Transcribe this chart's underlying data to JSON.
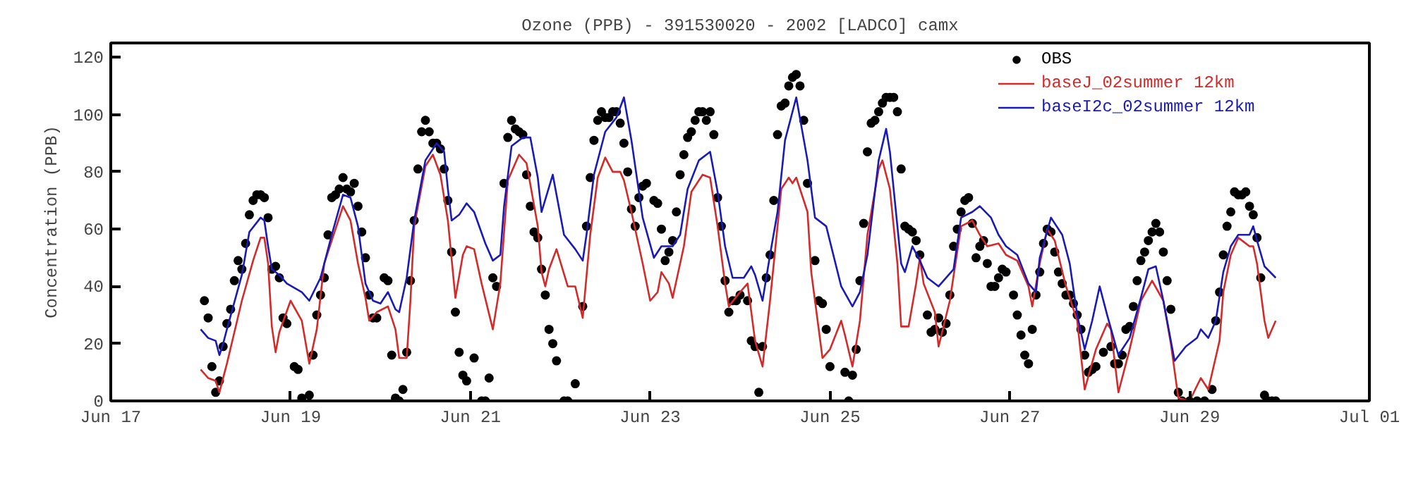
{
  "chart_data": {
    "type": "line",
    "title": "Ozone (PPB) - 391530020 - 2002 [LADCO] camx",
    "ylabel": "Concentration (PPB)",
    "xlim": [
      "2002-06-17",
      "2002-07-01"
    ],
    "xticks": [
      {
        "value": "2002-06-17",
        "label": "Jun 17"
      },
      {
        "value": "2002-06-19",
        "label": "Jun 19"
      },
      {
        "value": "2002-06-21",
        "label": "Jun 21"
      },
      {
        "value": "2002-06-23",
        "label": "Jun 23"
      },
      {
        "value": "2002-06-25",
        "label": "Jun 25"
      },
      {
        "value": "2002-06-27",
        "label": "Jun 27"
      },
      {
        "value": "2002-06-29",
        "label": "Jun 29"
      },
      {
        "value": "2002-07-01",
        "label": "Jul 01"
      }
    ],
    "ylim": [
      0,
      125
    ],
    "yticks": [
      0,
      20,
      40,
      60,
      80,
      100,
      120
    ],
    "grid": false,
    "legend": "top right",
    "line_style": "solid",
    "series": [
      {
        "name": "OBS",
        "type": "scatter",
        "marker": "circle",
        "color": "#000000",
        "x": [
          "2002-06-18T01:00",
          "2002-06-18T02:00",
          "2002-06-18T03:00",
          "2002-06-18T04:00",
          "2002-06-18T05:00",
          "2002-06-18T06:00",
          "2002-06-18T07:00",
          "2002-06-18T08:00",
          "2002-06-18T09:00",
          "2002-06-18T10:00",
          "2002-06-18T11:00",
          "2002-06-18T12:00",
          "2002-06-18T13:00",
          "2002-06-18T14:00",
          "2002-06-18T15:00",
          "2002-06-18T16:00",
          "2002-06-18T17:00",
          "2002-06-18T18:00",
          "2002-06-18T19:00",
          "2002-06-18T20:00",
          "2002-06-18T21:00",
          "2002-06-18T22:00",
          "2002-06-18T23:00",
          "2002-06-19T01:00",
          "2002-06-19T02:00",
          "2002-06-19T03:00",
          "2002-06-19T05:00",
          "2002-06-19T06:00",
          "2002-06-19T07:00",
          "2002-06-19T08:00",
          "2002-06-19T09:00",
          "2002-06-19T10:00",
          "2002-06-19T11:00",
          "2002-06-19T12:00",
          "2002-06-19T13:00",
          "2002-06-19T14:00",
          "2002-06-19T15:00",
          "2002-06-19T16:00",
          "2002-06-19T17:00",
          "2002-06-19T18:00",
          "2002-06-19T19:00",
          "2002-06-19T20:00",
          "2002-06-19T21:00",
          "2002-06-19T22:00",
          "2002-06-19T23:00",
          "2002-06-20T01:00",
          "2002-06-20T02:00",
          "2002-06-20T03:00",
          "2002-06-20T04:00",
          "2002-06-20T05:00",
          "2002-06-20T06:00",
          "2002-06-20T07:00",
          "2002-06-20T08:00",
          "2002-06-20T09:00",
          "2002-06-20T10:00",
          "2002-06-20T11:00",
          "2002-06-20T12:00",
          "2002-06-20T13:00",
          "2002-06-20T14:00",
          "2002-06-20T15:00",
          "2002-06-20T16:00",
          "2002-06-20T17:00",
          "2002-06-20T18:00",
          "2002-06-20T19:00",
          "2002-06-20T20:00",
          "2002-06-20T21:00",
          "2002-06-20T22:00",
          "2002-06-20T23:00",
          "2002-06-21T01:00",
          "2002-06-21T03:00",
          "2002-06-21T04:00",
          "2002-06-21T05:00",
          "2002-06-21T06:00",
          "2002-06-21T07:00",
          "2002-06-21T09:00",
          "2002-06-21T10:00",
          "2002-06-21T11:00",
          "2002-06-21T12:00",
          "2002-06-21T13:00",
          "2002-06-21T14:00",
          "2002-06-21T15:00",
          "2002-06-21T16:00",
          "2002-06-21T17:00",
          "2002-06-21T18:00",
          "2002-06-21T19:00",
          "2002-06-21T20:00",
          "2002-06-21T21:00",
          "2002-06-21T22:00",
          "2002-06-21T23:00",
          "2002-06-22T01:00",
          "2002-06-22T02:00",
          "2002-06-22T04:00",
          "2002-06-22T06:00",
          "2002-06-22T07:00",
          "2002-06-22T08:00",
          "2002-06-22T09:00",
          "2002-06-22T10:00",
          "2002-06-22T11:00",
          "2002-06-22T12:00",
          "2002-06-22T13:00",
          "2002-06-22T14:00",
          "2002-06-22T15:00",
          "2002-06-22T16:00",
          "2002-06-22T17:00",
          "2002-06-22T18:00",
          "2002-06-22T19:00",
          "2002-06-22T20:00",
          "2002-06-22T21:00",
          "2002-06-22T22:00",
          "2002-06-22T23:00",
          "2002-06-23T01:00",
          "2002-06-23T02:00",
          "2002-06-23T03:00",
          "2002-06-23T04:00",
          "2002-06-23T05:00",
          "2002-06-23T06:00",
          "2002-06-23T07:00",
          "2002-06-23T08:00",
          "2002-06-23T09:00",
          "2002-06-23T10:00",
          "2002-06-23T11:00",
          "2002-06-23T12:00",
          "2002-06-23T13:00",
          "2002-06-23T14:00",
          "2002-06-23T15:00",
          "2002-06-23T16:00",
          "2002-06-23T17:00",
          "2002-06-23T18:00",
          "2002-06-23T19:00",
          "2002-06-23T20:00",
          "2002-06-23T21:00",
          "2002-06-23T22:00",
          "2002-06-23T23:00",
          "2002-06-24T00:00",
          "2002-06-24T02:00",
          "2002-06-24T03:00",
          "2002-06-24T04:00",
          "2002-06-24T05:00",
          "2002-06-24T06:00",
          "2002-06-24T07:00",
          "2002-06-24T08:00",
          "2002-06-24T09:00",
          "2002-06-24T10:00",
          "2002-06-24T11:00",
          "2002-06-24T12:00",
          "2002-06-24T13:00",
          "2002-06-24T14:00",
          "2002-06-24T15:00",
          "2002-06-24T16:00",
          "2002-06-24T17:00",
          "2002-06-24T18:00",
          "2002-06-24T20:00",
          "2002-06-24T21:00",
          "2002-06-24T22:00",
          "2002-06-24T23:00",
          "2002-06-25T00:00",
          "2002-06-25T04:00",
          "2002-06-25T05:00",
          "2002-06-25T06:00",
          "2002-06-25T07:00",
          "2002-06-25T08:00",
          "2002-06-25T09:00",
          "2002-06-25T10:00",
          "2002-06-25T11:00",
          "2002-06-25T12:00",
          "2002-06-25T13:00",
          "2002-06-25T14:00",
          "2002-06-25T15:00",
          "2002-06-25T16:00",
          "2002-06-25T17:00",
          "2002-06-25T18:00",
          "2002-06-25T19:00",
          "2002-06-25T20:00",
          "2002-06-25T21:00",
          "2002-06-25T22:00",
          "2002-06-25T23:00",
          "2002-06-26T00:00",
          "2002-06-26T02:00",
          "2002-06-26T03:00",
          "2002-06-26T04:00",
          "2002-06-26T05:00",
          "2002-06-26T06:00",
          "2002-06-26T07:00",
          "2002-06-26T08:00",
          "2002-06-26T09:00",
          "2002-06-26T10:00",
          "2002-06-26T11:00",
          "2002-06-26T12:00",
          "2002-06-26T13:00",
          "2002-06-26T14:00",
          "2002-06-26T15:00",
          "2002-06-26T16:00",
          "2002-06-26T17:00",
          "2002-06-26T18:00",
          "2002-06-26T19:00",
          "2002-06-26T20:00",
          "2002-06-26T21:00",
          "2002-06-26T22:00",
          "2002-06-26T23:00",
          "2002-06-27T01:00",
          "2002-06-27T02:00",
          "2002-06-27T03:00",
          "2002-06-27T04:00",
          "2002-06-27T05:00",
          "2002-06-27T06:00",
          "2002-06-27T07:00",
          "2002-06-27T08:00",
          "2002-06-27T09:00",
          "2002-06-27T10:00",
          "2002-06-27T11:00",
          "2002-06-27T12:00",
          "2002-06-27T13:00",
          "2002-06-27T14:00",
          "2002-06-27T15:00",
          "2002-06-27T16:00",
          "2002-06-27T17:00",
          "2002-06-27T18:00",
          "2002-06-27T19:00",
          "2002-06-27T20:00",
          "2002-06-27T21:00",
          "2002-06-27T22:00",
          "2002-06-27T23:00",
          "2002-06-28T01:00",
          "2002-06-28T03:00",
          "2002-06-28T04:00",
          "2002-06-28T05:00",
          "2002-06-28T06:00",
          "2002-06-28T07:00",
          "2002-06-28T08:00",
          "2002-06-28T09:00",
          "2002-06-28T10:00",
          "2002-06-28T11:00",
          "2002-06-28T12:00",
          "2002-06-28T13:00",
          "2002-06-28T14:00",
          "2002-06-28T15:00",
          "2002-06-28T16:00",
          "2002-06-28T17:00",
          "2002-06-28T18:00",
          "2002-06-28T19:00",
          "2002-06-28T21:00",
          "2002-06-28T22:00",
          "2002-06-29T00:00",
          "2002-06-29T02:00",
          "2002-06-29T04:00",
          "2002-06-29T06:00",
          "2002-06-29T07:00",
          "2002-06-29T08:00",
          "2002-06-29T09:00",
          "2002-06-29T10:00",
          "2002-06-29T11:00",
          "2002-06-29T12:00",
          "2002-06-29T13:00",
          "2002-06-29T14:00",
          "2002-06-29T15:00",
          "2002-06-29T16:00",
          "2002-06-29T17:00",
          "2002-06-29T18:00",
          "2002-06-29T19:00",
          "2002-06-29T20:00",
          "2002-06-29T21:00",
          "2002-06-29T22:00",
          "2002-06-29T23:00"
        ],
        "values": [
          35,
          29,
          12,
          3,
          7,
          19,
          27,
          32,
          42,
          49,
          46,
          55,
          65,
          70,
          72,
          72,
          71,
          64,
          46,
          47,
          43,
          29,
          27,
          12,
          11,
          1,
          2,
          16,
          30,
          37,
          43,
          58,
          71,
          72,
          74,
          78,
          74,
          73,
          76,
          68,
          59,
          50,
          37,
          29,
          29,
          43,
          42,
          16,
          1,
          0,
          4,
          17,
          42,
          63,
          81,
          94,
          98,
          94,
          90,
          90,
          88,
          81,
          70,
          52,
          31,
          17,
          9,
          7,
          15,
          0,
          0,
          8,
          43,
          40,
          76,
          92,
          98,
          95,
          94,
          93,
          79,
          68,
          59,
          57,
          46,
          37,
          25,
          20,
          14,
          0,
          0,
          6,
          33,
          61,
          78,
          91,
          98,
          101,
          99,
          99,
          101,
          101,
          97,
          90,
          80,
          67,
          61,
          71,
          75,
          76,
          70,
          69,
          60,
          49,
          52,
          56,
          66,
          79,
          86,
          92,
          94,
          98,
          101,
          101,
          98,
          101,
          93,
          71,
          61,
          42,
          31,
          35,
          35,
          37,
          35,
          21,
          19,
          3,
          19,
          43,
          51,
          70,
          93,
          103,
          104,
          110,
          113,
          114,
          110,
          98,
          76,
          49,
          35,
          34,
          25,
          12,
          10,
          0,
          9,
          18,
          42,
          62,
          87,
          97,
          98,
          101,
          104,
          106,
          106,
          106,
          101,
          81,
          61,
          60,
          59,
          56,
          51,
          30,
          24,
          25,
          29,
          24,
          27,
          37,
          54,
          60,
          66,
          70,
          71,
          62,
          50,
          54,
          56,
          48,
          40,
          40,
          43,
          46,
          45,
          37,
          30,
          23,
          16,
          13,
          25,
          37,
          45,
          55,
          60,
          59,
          52,
          45,
          41,
          37,
          37,
          34,
          30,
          25,
          16,
          10,
          11,
          12,
          17,
          19,
          13,
          13,
          16,
          25,
          26,
          33,
          42,
          49,
          52,
          56,
          59,
          62,
          59,
          52,
          42,
          32,
          3,
          0,
          0,
          0,
          0,
          4,
          28,
          38,
          51,
          61,
          66,
          73,
          72,
          72,
          73,
          68,
          65,
          57,
          43,
          2,
          0,
          0,
          0
        ]
      },
      {
        "name": "baseJ_02summer 12km",
        "color": "#d42a2a",
        "x": [
          "2002-06-18T00:00",
          "2002-06-18T02:00",
          "2002-06-18T04:00",
          "2002-06-18T05:00",
          "2002-06-18T07:00",
          "2002-06-18T11:00",
          "2002-06-18T14:00",
          "2002-06-18T16:00",
          "2002-06-18T17:00",
          "2002-06-18T18:00",
          "2002-06-18T19:00",
          "2002-06-18T20:00",
          "2002-06-18T21:00",
          "2002-06-19T00:00",
          "2002-06-19T03:00",
          "2002-06-19T05:00",
          "2002-06-19T07:00",
          "2002-06-19T09:00",
          "2002-06-19T14:00",
          "2002-06-19T16:00",
          "2002-06-19T18:00",
          "2002-06-19T20:00",
          "2002-06-19T21:00",
          "2002-06-19T23:00",
          "2002-06-20T02:00",
          "2002-06-20T04:00",
          "2002-06-20T05:00",
          "2002-06-20T07:00",
          "2002-06-20T08:00",
          "2002-06-20T09:00",
          "2002-06-20T12:00",
          "2002-06-20T14:00",
          "2002-06-20T16:00",
          "2002-06-20T18:00",
          "2002-06-20T20:00",
          "2002-06-20T22:00",
          "2002-06-20T23:00",
          "2002-06-21T01:00",
          "2002-06-21T03:00",
          "2002-06-21T06:00",
          "2002-06-21T08:00",
          "2002-06-21T10:00",
          "2002-06-21T13:00",
          "2002-06-21T15:00",
          "2002-06-21T18:00",
          "2002-06-21T19:00",
          "2002-06-21T20:00",
          "2002-06-21T21:00",
          "2002-06-21T23:00",
          "2002-06-22T02:00",
          "2002-06-22T04:00",
          "2002-06-22T06:00",
          "2002-06-22T08:00",
          "2002-06-22T10:00",
          "2002-06-22T12:00",
          "2002-06-22T14:00",
          "2002-06-22T16:00",
          "2002-06-22T17:00",
          "2002-06-22T19:00",
          "2002-06-22T22:00",
          "2002-06-23T00:00",
          "2002-06-23T02:00",
          "2002-06-23T03:00",
          "2002-06-23T05:00",
          "2002-06-23T06:00",
          "2002-06-23T09:00",
          "2002-06-23T11:00",
          "2002-06-23T14:00",
          "2002-06-23T16:00",
          "2002-06-23T18:00",
          "2002-06-23T20:00",
          "2002-06-23T21:00",
          "2002-06-24T00:00",
          "2002-06-24T02:00",
          "2002-06-24T04:00",
          "2002-06-24T06:00",
          "2002-06-24T08:00",
          "2002-06-24T11:00",
          "2002-06-24T13:00",
          "2002-06-24T14:00",
          "2002-06-24T15:00",
          "2002-06-24T18:00",
          "2002-06-24T19:00",
          "2002-06-24T22:00",
          "2002-06-25T00:00",
          "2002-06-25T03:00",
          "2002-06-25T04:00",
          "2002-06-25T06:00",
          "2002-06-25T08:00",
          "2002-06-25T10:00",
          "2002-06-25T13:00",
          "2002-06-25T14:00",
          "2002-06-25T16:00",
          "2002-06-25T18:00",
          "2002-06-25T19:00",
          "2002-06-25T21:00",
          "2002-06-25T23:00",
          "2002-06-26T00:00",
          "2002-06-26T01:00",
          "2002-06-26T04:00",
          "2002-06-26T05:00",
          "2002-06-26T08:00",
          "2002-06-26T11:00",
          "2002-06-26T14:00",
          "2002-06-26T16:00",
          "2002-06-26T18:00",
          "2002-06-26T21:00",
          "2002-06-26T23:00",
          "2002-06-27T02:00",
          "2002-06-27T05:00",
          "2002-06-27T06:00",
          "2002-06-27T08:00",
          "2002-06-27T10:00",
          "2002-06-27T12:00",
          "2002-06-27T15:00",
          "2002-06-27T18:00",
          "2002-06-27T20:00",
          "2002-06-27T23:00",
          "2002-06-28T02:00",
          "2002-06-28T03:00",
          "2002-06-28T05:00",
          "2002-06-28T08:00",
          "2002-06-28T11:00",
          "2002-06-28T14:00",
          "2002-06-28T17:00",
          "2002-06-28T19:00",
          "2002-06-28T21:00",
          "2002-06-29T00:00",
          "2002-06-29T03:00",
          "2002-06-29T05:00",
          "2002-06-29T08:00",
          "2002-06-29T09:00",
          "2002-06-29T11:00",
          "2002-06-29T13:00",
          "2002-06-29T16:00",
          "2002-06-29T17:00",
          "2002-06-29T18:00",
          "2002-06-29T20:00",
          "2002-06-29T21:00",
          "2002-06-29T23:00"
        ],
        "values": [
          11,
          8,
          7,
          3,
          13,
          35,
          49,
          57,
          57,
          48,
          26,
          17,
          24,
          35,
          28,
          13,
          25,
          48,
          68,
          63,
          48,
          36,
          28,
          31,
          33,
          25,
          15,
          15,
          35,
          61,
          82,
          86,
          79,
          63,
          36,
          51,
          54,
          53,
          41,
          25,
          41,
          77,
          86,
          83,
          61,
          45,
          40,
          46,
          53,
          40,
          40,
          29,
          58,
          78,
          85,
          80,
          80,
          77,
          66,
          48,
          35,
          38,
          45,
          41,
          36,
          54,
          73,
          79,
          78,
          61,
          41,
          33,
          38,
          41,
          21,
          12,
          35,
          74,
          78,
          76,
          78,
          66,
          45,
          15,
          18,
          28,
          23,
          12,
          28,
          58,
          81,
          84,
          74,
          48,
          26,
          26,
          41,
          50,
          41,
          31,
          19,
          35,
          61,
          63,
          58,
          54,
          55,
          51,
          49,
          40,
          33,
          48,
          60,
          56,
          40,
          28,
          4,
          18,
          27,
          25,
          3,
          18,
          35,
          42,
          35,
          20,
          1,
          0,
          8,
          4,
          21,
          38,
          51,
          57,
          54,
          54,
          48,
          28,
          22,
          28
        ]
      },
      {
        "name": "baseI2c_02summer 12km",
        "color": "#1a1ab8",
        "x": [
          "2002-06-18T00:00",
          "2002-06-18T02:00",
          "2002-06-18T04:00",
          "2002-06-18T05:00",
          "2002-06-18T06:00",
          "2002-06-18T07:00",
          "2002-06-18T11:00",
          "2002-06-18T13:00",
          "2002-06-18T16:00",
          "2002-06-18T17:00",
          "2002-06-18T18:00",
          "2002-06-18T19:00",
          "2002-06-18T21:00",
          "2002-06-18T23:00",
          "2002-06-19T03:00",
          "2002-06-19T05:00",
          "2002-06-19T08:00",
          "2002-06-19T11:00",
          "2002-06-19T14:00",
          "2002-06-19T16:00",
          "2002-06-19T18:00",
          "2002-06-19T20:00",
          "2002-06-19T22:00",
          "2002-06-20T00:00",
          "2002-06-20T02:00",
          "2002-06-20T04:00",
          "2002-06-20T05:00",
          "2002-06-20T07:00",
          "2002-06-20T09:00",
          "2002-06-20T12:00",
          "2002-06-20T15:00",
          "2002-06-20T17:00",
          "2002-06-20T18:00",
          "2002-06-20T19:00",
          "2002-06-20T21:00",
          "2002-06-20T23:00",
          "2002-06-21T01:00",
          "2002-06-21T04:00",
          "2002-06-21T06:00",
          "2002-06-21T08:00",
          "2002-06-21T09:00",
          "2002-06-21T11:00",
          "2002-06-21T14:00",
          "2002-06-21T16:00",
          "2002-06-21T18:00",
          "2002-06-21T19:00",
          "2002-06-21T22:00",
          "2002-06-22T01:00",
          "2002-06-22T04:00",
          "2002-06-22T06:00",
          "2002-06-22T07:00",
          "2002-06-22T09:00",
          "2002-06-22T12:00",
          "2002-06-22T15:00",
          "2002-06-22T17:00",
          "2002-06-22T19:00",
          "2002-06-22T22:00",
          "2002-06-23T01:00",
          "2002-06-23T03:00",
          "2002-06-23T06:00",
          "2002-06-23T08:00",
          "2002-06-23T10:00",
          "2002-06-23T13:00",
          "2002-06-23T16:00",
          "2002-06-23T18:00",
          "2002-06-23T20:00",
          "2002-06-23T22:00",
          "2002-06-24T01:00",
          "2002-06-24T03:00",
          "2002-06-24T04:00",
          "2002-06-24T06:00",
          "2002-06-24T08:00",
          "2002-06-24T10:00",
          "2002-06-24T12:00",
          "2002-06-24T15:00",
          "2002-06-24T18:00",
          "2002-06-24T20:00",
          "2002-06-24T23:00",
          "2002-06-25T03:00",
          "2002-06-25T06:00",
          "2002-06-25T08:00",
          "2002-06-25T10:00",
          "2002-06-25T13:00",
          "2002-06-25T15:00",
          "2002-06-25T16:00",
          "2002-06-25T19:00",
          "2002-06-25T20:00",
          "2002-06-25T22:00",
          "2002-06-26T00:00",
          "2002-06-26T02:00",
          "2002-06-26T05:00",
          "2002-06-26T09:00",
          "2002-06-26T11:00",
          "2002-06-26T14:00",
          "2002-06-26T16:00",
          "2002-06-26T19:00",
          "2002-06-26T21:00",
          "2002-06-26T23:00",
          "2002-06-27T02:00",
          "2002-06-27T05:00",
          "2002-06-27T07:00",
          "2002-06-27T08:00",
          "2002-06-27T11:00",
          "2002-06-27T14:00",
          "2002-06-27T16:00",
          "2002-06-27T18:00",
          "2002-06-27T20:00",
          "2002-06-27T22:00",
          "2002-06-28T00:00",
          "2002-06-28T02:00",
          "2002-06-28T05:00",
          "2002-06-28T08:00",
          "2002-06-28T11:00",
          "2002-06-28T13:00",
          "2002-06-28T15:00",
          "2002-06-28T17:00",
          "2002-06-28T20:00",
          "2002-06-28T23:00",
          "2002-06-29T02:00",
          "2002-06-29T03:00",
          "2002-06-29T05:00",
          "2002-06-29T07:00",
          "2002-06-29T09:00",
          "2002-06-29T11:00",
          "2002-06-29T13:00",
          "2002-06-29T16:00",
          "2002-06-29T17:00",
          "2002-06-29T18:00",
          "2002-06-29T20:00",
          "2002-06-29T23:00"
        ],
        "values": [
          25,
          22,
          21,
          16,
          20,
          25,
          44,
          59,
          64,
          63,
          54,
          46,
          44,
          41,
          38,
          35,
          43,
          58,
          72,
          71,
          61,
          41,
          35,
          34,
          38,
          32,
          31,
          43,
          63,
          84,
          90,
          87,
          74,
          63,
          65,
          69,
          66,
          55,
          49,
          51,
          68,
          89,
          92,
          92,
          78,
          66,
          79,
          58,
          53,
          49,
          58,
          79,
          94,
          99,
          106,
          91,
          64,
          50,
          54,
          54,
          58,
          74,
          84,
          87,
          73,
          54,
          43,
          43,
          47,
          44,
          35,
          51,
          66,
          91,
          106,
          84,
          64,
          61,
          40,
          33,
          38,
          51,
          84,
          95,
          87,
          48,
          45,
          54,
          49,
          43,
          40,
          46,
          64,
          66,
          68,
          64,
          58,
          54,
          51,
          41,
          38,
          50,
          64,
          58,
          48,
          30,
          18,
          28,
          40,
          30,
          16,
          22,
          36,
          46,
          47,
          35,
          14,
          19,
          22,
          25,
          22,
          28,
          45,
          54,
          58,
          58,
          61,
          56,
          47,
          43
        ]
      }
    ]
  }
}
